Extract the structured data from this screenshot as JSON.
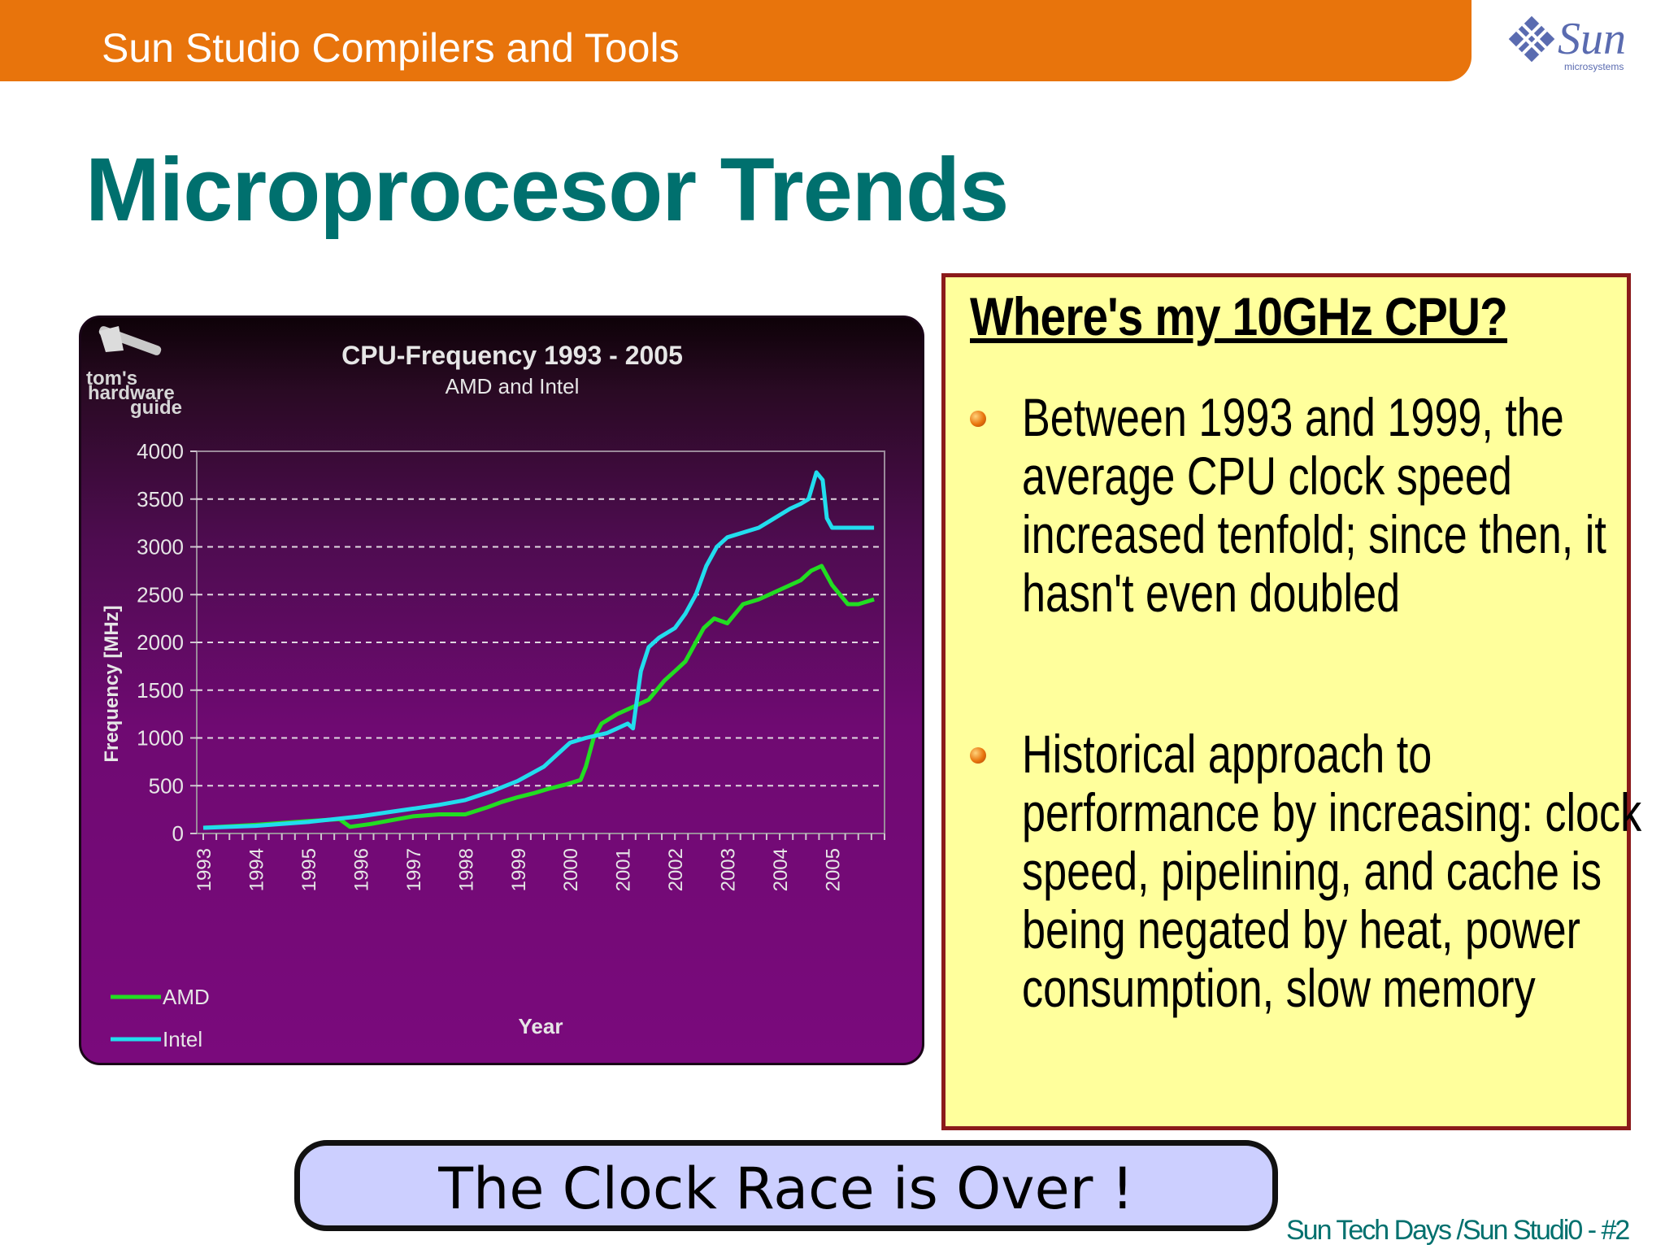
{
  "header": {
    "title": "Sun Studio Compilers and Tools"
  },
  "logo": {
    "text": "Sun",
    "subtext": "microsystems",
    "icon": "sun-diamond-logo-icon"
  },
  "slide": {
    "title": "Microprocesor Trends"
  },
  "chart_logo": {
    "line1": "tom's",
    "line2": "hardware",
    "line3": "guide",
    "icon": "hammer-icon"
  },
  "callout": {
    "heading": "Where's my 10GHz CPU?",
    "bullets": [
      "Between 1993 and 1999, the average CPU clock speed increased tenfold; since then, it hasn't even doubled",
      "Historical approach to performance by increasing: clock speed, pipelining, and cache is being negated by heat, power consumption, slow memory"
    ]
  },
  "banner": {
    "text": "The Clock Race is Over !"
  },
  "footer": {
    "text": "Sun Tech Days /Sun Studi0 - #2"
  },
  "colors": {
    "header": "#e8740c",
    "title": "#00706e",
    "amd": "#22dd22",
    "intel": "#22ddee",
    "callout_bg": "#ffff9c",
    "callout_border": "#8b1a1a",
    "banner_bg": "#cccfff"
  },
  "chart_data": {
    "type": "line",
    "title": "CPU-Frequency 1993 - 2005",
    "subtitle": "AMD and Intel",
    "xlabel": "Year",
    "ylabel": "Frequency [MHz]",
    "xlim": [
      1993,
      2006
    ],
    "ylim": [
      0,
      4000
    ],
    "yticks": [
      0,
      500,
      1000,
      1500,
      2000,
      2500,
      3000,
      3500,
      4000
    ],
    "xticks": [
      "1993",
      "1994",
      "1995",
      "1996",
      "1997",
      "1998",
      "1999",
      "2000",
      "2001",
      "2002",
      "2003",
      "2004",
      "2005"
    ],
    "grid": true,
    "legend_position": "bottom-left",
    "series": [
      {
        "name": "AMD",
        "color": "#22dd22",
        "x": [
          1993.0,
          1994.0,
          1995.0,
          1995.6,
          1995.8,
          1996.2,
          1996.7,
          1997.0,
          1997.5,
          1998.0,
          1998.4,
          1998.7,
          1999.0,
          1999.3,
          1999.6,
          1999.9,
          2000.2,
          2000.3,
          2000.45,
          2000.6,
          2000.9,
          2001.1,
          2001.5,
          2001.8,
          2002.0,
          2002.2,
          2002.4,
          2002.55,
          2002.75,
          2003.0,
          2003.3,
          2003.6,
          2004.0,
          2004.4,
          2004.6,
          2004.8,
          2005.0,
          2005.3,
          2005.5,
          2005.8
        ],
        "values": [
          60,
          90,
          130,
          150,
          70,
          100,
          150,
          180,
          200,
          200,
          270,
          330,
          380,
          420,
          470,
          510,
          560,
          700,
          1000,
          1150,
          1250,
          1300,
          1400,
          1600,
          1700,
          1800,
          2000,
          2150,
          2250,
          2200,
          2400,
          2450,
          2550,
          2650,
          2750,
          2800,
          2600,
          2400,
          2400,
          2450
        ]
      },
      {
        "name": "Intel",
        "color": "#22ddee",
        "x": [
          1993.0,
          1994.0,
          1995.0,
          1996.0,
          1996.5,
          1997.0,
          1997.5,
          1998.0,
          1998.5,
          1999.0,
          1999.5,
          1999.8,
          2000.0,
          2000.3,
          2000.7,
          2000.9,
          2001.1,
          2001.2,
          2001.35,
          2001.5,
          2001.7,
          2002.0,
          2002.2,
          2002.4,
          2002.6,
          2002.8,
          2003.0,
          2003.3,
          2003.6,
          2003.9,
          2004.2,
          2004.4,
          2004.55,
          2004.7,
          2004.82,
          2004.9,
          2005.0,
          2005.3,
          2005.8
        ],
        "values": [
          60,
          80,
          120,
          180,
          220,
          260,
          300,
          350,
          440,
          550,
          700,
          850,
          950,
          1000,
          1050,
          1100,
          1150,
          1100,
          1700,
          1950,
          2050,
          2150,
          2300,
          2500,
          2800,
          3000,
          3100,
          3150,
          3200,
          3300,
          3400,
          3450,
          3500,
          3780,
          3700,
          3300,
          3200,
          3200,
          3200
        ]
      }
    ]
  }
}
